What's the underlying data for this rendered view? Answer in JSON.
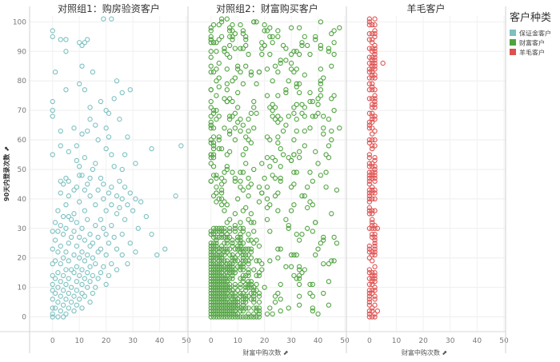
{
  "chart_data": {
    "type": "scatter",
    "y_axis": {
      "label": "90天内登录次数",
      "ticks": [
        0,
        10,
        20,
        30,
        40,
        50,
        60,
        70,
        80,
        90,
        100
      ],
      "range": [
        -5,
        102
      ]
    },
    "legend": {
      "title": "客户种类",
      "placement": "top-right",
      "items": [
        {
          "name": "保证金客户",
          "color": "#7cc0c0"
        },
        {
          "name": "财富客户",
          "color": "#4fa33f"
        },
        {
          "name": "羊毛客户",
          "color": "#e04f4f"
        }
      ]
    },
    "panels": [
      {
        "title": "对照组1：购房验资客户",
        "x_label": "",
        "x_ticks": [
          0,
          10,
          20,
          30,
          40,
          50
        ],
        "x_range": [
          -5,
          50
        ],
        "series": "保证金客户",
        "points": [
          [
            0,
            97
          ],
          [
            0,
            95
          ],
          [
            3,
            94
          ],
          [
            5,
            94
          ],
          [
            10,
            93
          ],
          [
            11,
            92
          ],
          [
            12,
            93
          ],
          [
            13,
            94
          ],
          [
            19,
            101
          ],
          [
            22,
            101
          ],
          [
            5,
            90
          ],
          [
            1,
            83
          ],
          [
            11,
            85
          ],
          [
            15,
            83
          ],
          [
            10,
            79
          ],
          [
            24,
            80
          ],
          [
            5,
            77
          ],
          [
            12,
            77
          ],
          [
            26,
            76
          ],
          [
            29,
            77
          ],
          [
            18,
            73
          ],
          [
            14,
            71
          ],
          [
            23,
            74
          ],
          [
            0,
            73
          ],
          [
            0,
            70
          ],
          [
            0,
            68
          ],
          [
            20,
            70
          ],
          [
            21,
            69
          ],
          [
            14,
            67
          ],
          [
            25,
            67
          ],
          [
            16,
            65
          ],
          [
            3,
            63
          ],
          [
            8,
            64
          ],
          [
            20,
            64
          ],
          [
            13,
            63
          ],
          [
            11,
            62
          ],
          [
            21,
            61
          ],
          [
            28,
            61
          ],
          [
            17,
            60
          ],
          [
            3,
            58
          ],
          [
            9,
            58
          ],
          [
            0,
            55
          ],
          [
            6,
            56
          ],
          [
            20,
            57
          ],
          [
            22,
            55
          ],
          [
            37,
            57
          ],
          [
            12,
            54
          ],
          [
            9,
            53
          ],
          [
            27,
            55
          ],
          [
            48,
            58
          ],
          [
            16,
            52
          ],
          [
            31,
            52
          ],
          [
            10,
            51
          ],
          [
            15,
            50
          ],
          [
            23,
            51
          ],
          [
            26,
            50
          ],
          [
            5,
            47
          ],
          [
            6,
            46
          ],
          [
            10,
            48
          ],
          [
            11,
            48
          ],
          [
            14,
            47
          ],
          [
            18,
            47
          ],
          [
            3,
            46
          ],
          [
            13,
            45
          ],
          [
            19,
            45
          ],
          [
            25,
            46
          ],
          [
            4,
            45
          ],
          [
            9,
            44
          ],
          [
            22,
            44
          ],
          [
            27,
            44
          ],
          [
            8,
            43
          ],
          [
            12,
            43
          ],
          [
            17,
            43
          ],
          [
            29,
            42
          ],
          [
            3,
            42
          ],
          [
            21,
            42
          ],
          [
            24,
            41
          ],
          [
            6,
            41
          ],
          [
            14,
            41
          ],
          [
            19,
            40
          ],
          [
            26,
            40
          ],
          [
            31,
            40
          ],
          [
            10,
            39
          ],
          [
            28,
            38
          ],
          [
            33,
            39
          ],
          [
            46,
            41
          ],
          [
            5,
            38
          ],
          [
            16,
            38
          ],
          [
            22,
            38
          ],
          [
            25,
            37
          ],
          [
            2,
            36
          ],
          [
            12,
            36
          ],
          [
            20,
            36
          ],
          [
            30,
            36
          ],
          [
            8,
            35
          ],
          [
            24,
            35
          ],
          [
            35,
            34
          ],
          [
            4,
            34
          ],
          [
            6,
            34
          ],
          [
            7,
            33
          ],
          [
            13,
            33
          ],
          [
            18,
            33
          ],
          [
            27,
            33
          ],
          [
            1,
            32
          ],
          [
            9,
            32
          ],
          [
            16,
            31
          ],
          [
            22,
            31
          ],
          [
            3,
            31
          ],
          [
            5,
            30
          ],
          [
            11,
            30
          ],
          [
            19,
            30
          ],
          [
            32,
            30
          ],
          [
            0,
            29
          ],
          [
            2,
            29
          ],
          [
            8,
            29
          ],
          [
            14,
            28
          ],
          [
            20,
            28
          ],
          [
            26,
            28
          ],
          [
            37,
            28
          ],
          [
            4,
            28
          ],
          [
            7,
            27
          ],
          [
            10,
            27
          ],
          [
            17,
            27
          ],
          [
            23,
            27
          ],
          [
            1,
            26
          ],
          [
            12,
            26
          ],
          [
            6,
            25
          ],
          [
            15,
            25
          ],
          [
            21,
            25
          ],
          [
            29,
            25
          ],
          [
            3,
            24
          ],
          [
            9,
            24
          ],
          [
            14,
            24
          ],
          [
            18,
            23
          ],
          [
            24,
            23
          ],
          [
            42,
            23
          ],
          [
            0,
            23
          ],
          [
            5,
            22
          ],
          [
            11,
            22
          ],
          [
            17,
            22
          ],
          [
            31,
            22
          ],
          [
            2,
            22
          ],
          [
            8,
            21
          ],
          [
            13,
            21
          ],
          [
            20,
            21
          ],
          [
            26,
            21
          ],
          [
            39,
            21
          ],
          [
            4,
            20
          ],
          [
            10,
            20
          ],
          [
            15,
            20
          ],
          [
            1,
            19
          ],
          [
            6,
            19
          ],
          [
            12,
            19
          ],
          [
            16,
            18
          ],
          [
            22,
            18
          ],
          [
            28,
            18
          ],
          [
            0,
            18
          ],
          [
            3,
            18
          ],
          [
            9,
            17
          ],
          [
            14,
            17
          ],
          [
            19,
            17
          ],
          [
            5,
            16
          ],
          [
            7,
            16
          ],
          [
            11,
            16
          ],
          [
            24,
            16
          ],
          [
            2,
            15
          ],
          [
            8,
            15
          ],
          [
            13,
            15
          ],
          [
            18,
            15
          ],
          [
            0,
            14
          ],
          [
            4,
            14
          ],
          [
            10,
            14
          ],
          [
            15,
            14
          ],
          [
            21,
            14
          ],
          [
            1,
            13
          ],
          [
            6,
            13
          ],
          [
            12,
            13
          ],
          [
            17,
            13
          ],
          [
            3,
            12
          ],
          [
            9,
            12
          ],
          [
            14,
            12
          ],
          [
            0,
            11
          ],
          [
            5,
            11
          ],
          [
            11,
            11
          ],
          [
            20,
            11
          ],
          [
            2,
            10
          ],
          [
            7,
            10
          ],
          [
            13,
            10
          ],
          [
            16,
            10
          ],
          [
            4,
            9
          ],
          [
            9,
            9
          ],
          [
            0,
            9
          ],
          [
            1,
            8
          ],
          [
            6,
            8
          ],
          [
            11,
            8
          ],
          [
            15,
            8
          ],
          [
            3,
            7
          ],
          [
            8,
            7
          ],
          [
            12,
            7
          ],
          [
            0,
            6
          ],
          [
            5,
            6
          ],
          [
            10,
            6
          ],
          [
            2,
            5
          ],
          [
            7,
            5
          ],
          [
            14,
            5
          ],
          [
            4,
            4
          ],
          [
            9,
            4
          ],
          [
            0,
            3
          ],
          [
            1,
            3
          ],
          [
            6,
            3
          ],
          [
            11,
            3
          ],
          [
            3,
            2
          ],
          [
            8,
            2
          ],
          [
            0,
            1
          ],
          [
            5,
            1
          ],
          [
            2,
            0
          ],
          [
            0,
            0
          ],
          [
            4,
            0
          ]
        ]
      },
      {
        "title": "对照组2：财富购买客户",
        "x_label": "财富中购次数",
        "x_ticks": [
          0,
          10,
          20,
          30,
          40,
          50
        ],
        "x_range": [
          -5,
          50
        ],
        "series": "财富客户",
        "points": []
      },
      {
        "title": "羊毛客户",
        "x_label": "财富中购次数",
        "x_ticks": [
          0,
          10,
          20,
          30,
          40,
          50
        ],
        "x_range": [
          -5,
          50
        ],
        "series": "羊毛客户",
        "points": []
      }
    ]
  }
}
